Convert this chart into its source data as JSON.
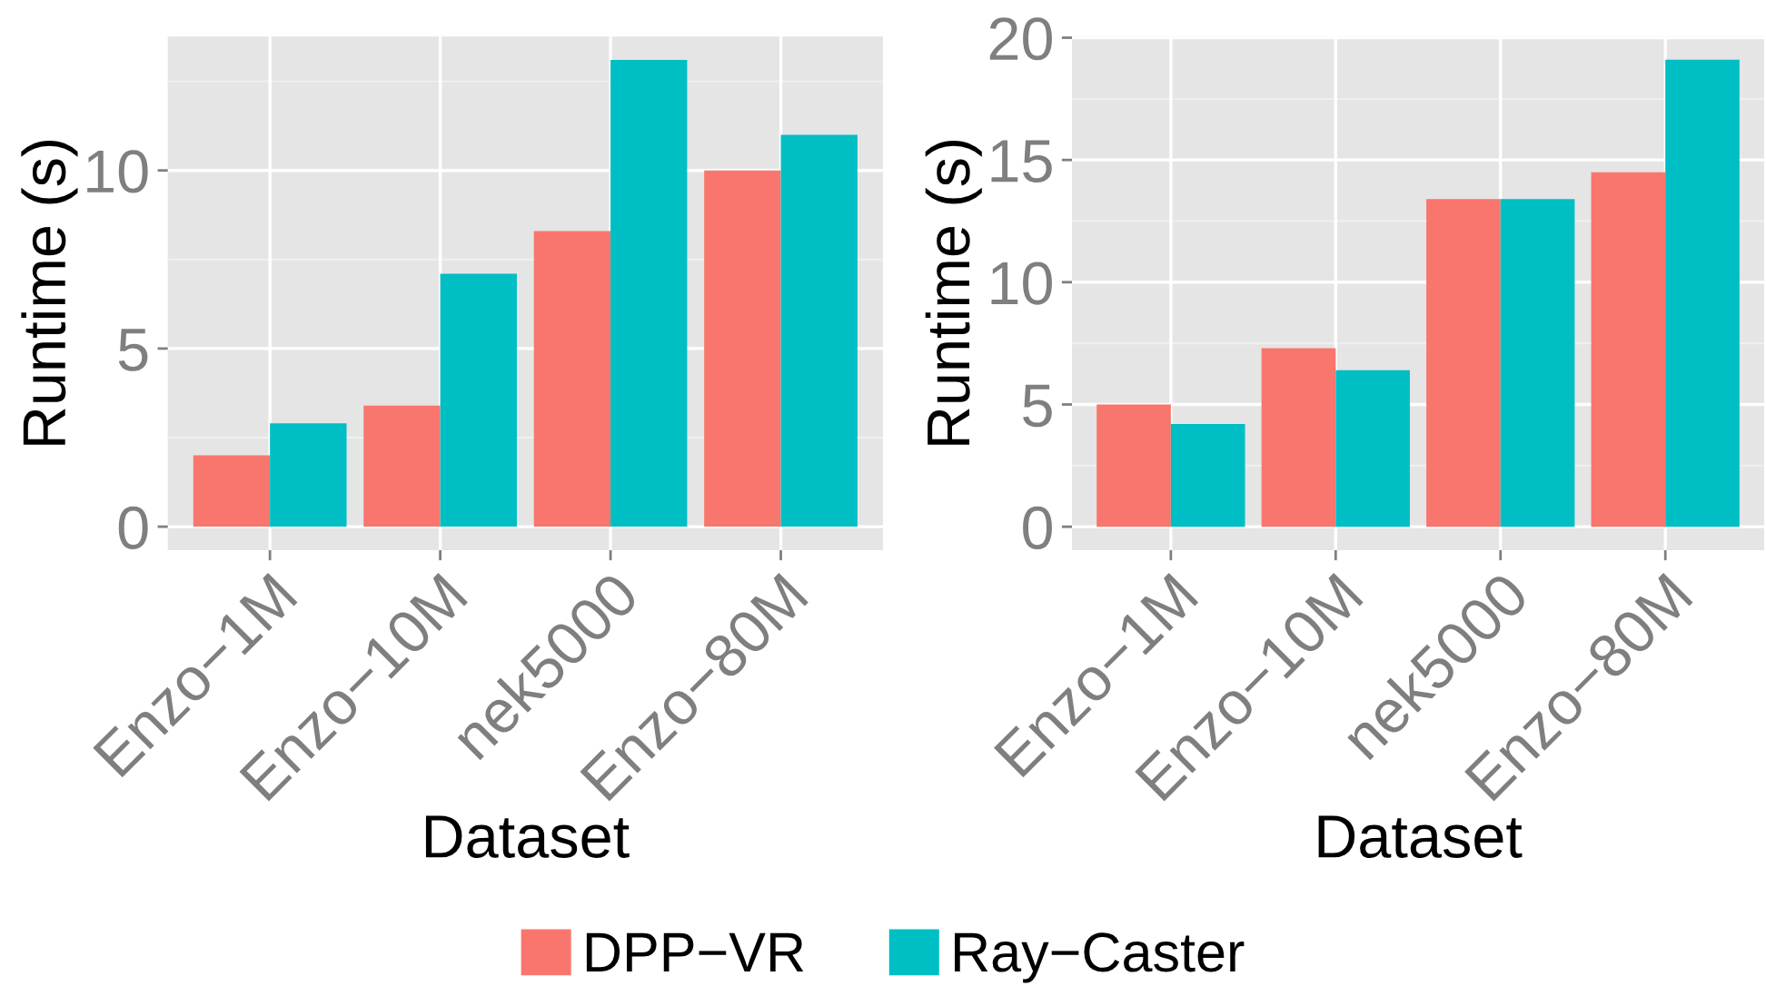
{
  "chart_data": [
    {
      "type": "bar",
      "xlabel": "Dataset",
      "ylabel": "Runtime (s)",
      "categories": [
        "Enzo−1M",
        "Enzo−10M",
        "nek5000",
        "Enzo−80M"
      ],
      "series": [
        {
          "name": "DPP−VR",
          "color": "#f8766d",
          "values": [
            2.0,
            3.4,
            8.3,
            10.0
          ]
        },
        {
          "name": "Ray−Caster",
          "color": "#00bfc4",
          "values": [
            2.9,
            7.1,
            13.1,
            11.0
          ]
        }
      ],
      "ylim": [
        -0.66,
        13.76
      ],
      "yticks": [
        0,
        5,
        10
      ],
      "grid": true,
      "legend": "bottom"
    },
    {
      "type": "bar",
      "xlabel": "Dataset",
      "ylabel": "Runtime (s)",
      "categories": [
        "Enzo−1M",
        "Enzo−10M",
        "nek5000",
        "Enzo−80M"
      ],
      "series": [
        {
          "name": "DPP−VR",
          "color": "#f8766d",
          "values": [
            5.0,
            7.3,
            13.4,
            14.5
          ]
        },
        {
          "name": "Ray−Caster",
          "color": "#00bfc4",
          "values": [
            4.2,
            6.4,
            13.4,
            19.1
          ]
        }
      ],
      "ylim": [
        -0.96,
        20.05
      ],
      "yticks": [
        0,
        5,
        10,
        15,
        20
      ],
      "grid": true,
      "legend": "bottom"
    }
  ]
}
